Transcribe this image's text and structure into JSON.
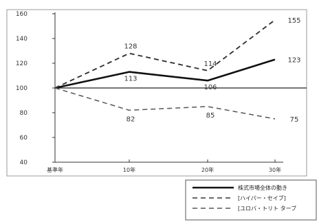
{
  "chart_data": {
    "type": "line",
    "categories": [
      "基準年",
      "10年",
      "20年",
      "30年"
    ],
    "yticks": [
      40,
      60,
      80,
      100,
      120,
      140,
      160
    ],
    "ylim": [
      40,
      160
    ],
    "reference_line": 100,
    "grid": false,
    "legend_position": "bottom-right",
    "series": [
      {
        "name": "株式市場全体の動き",
        "values": [
          100,
          113,
          106,
          123
        ],
        "line_style": "solid",
        "color": "#111111"
      },
      {
        "name": "[ハイパー・セイブ]",
        "values": [
          100,
          128,
          114,
          155
        ],
        "line_style": "dashed",
        "color": "#333333"
      },
      {
        "name": "[ユロバ・トリト ターブ",
        "values": [
          100,
          82,
          85,
          75
        ],
        "line_style": "dashed",
        "color": "#555555"
      }
    ]
  }
}
